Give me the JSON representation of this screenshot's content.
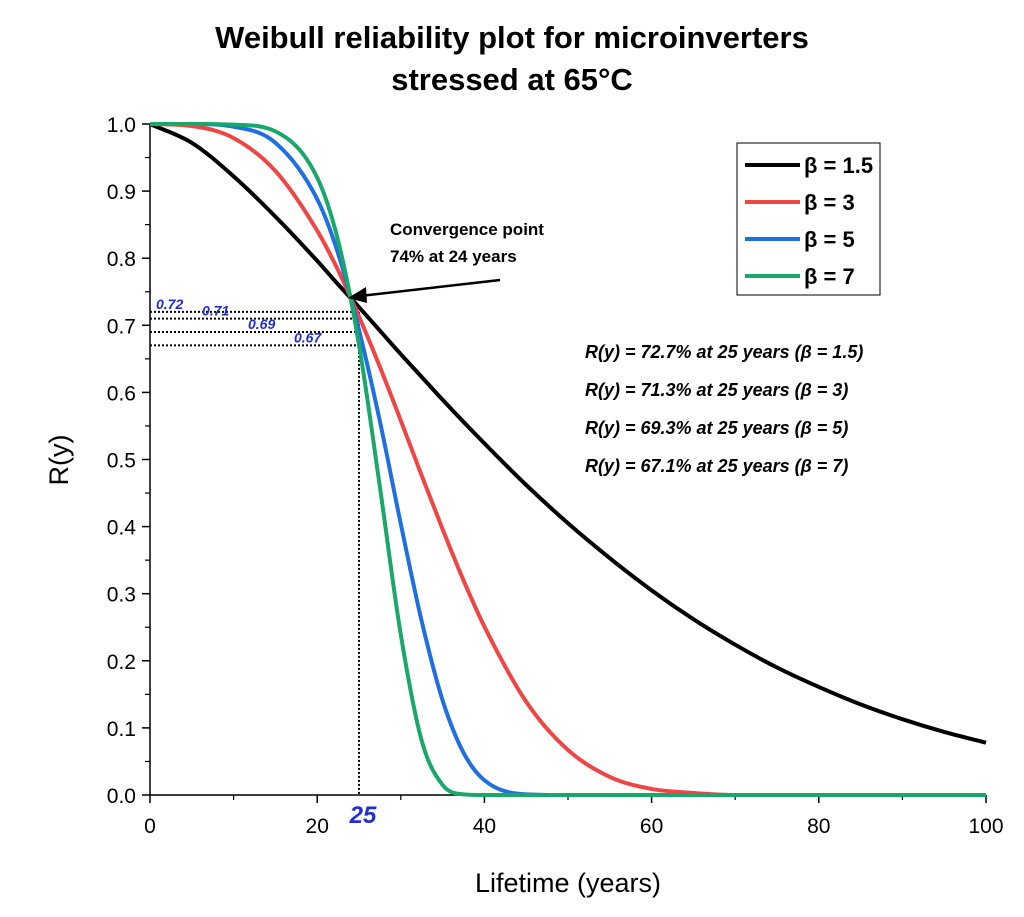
{
  "chart_data": {
    "type": "line",
    "title": [
      "Weibull reliability plot for microinverters",
      "stressed at 65°C"
    ],
    "xlabel": "Lifetime (years)",
    "ylabel": "R(y)",
    "xlim": [
      0,
      100
    ],
    "ylim": [
      0,
      1.0
    ],
    "xticks": [
      "0",
      "20",
      "40",
      "60",
      "80",
      "100"
    ],
    "yticks": [
      "0.0",
      "0.1",
      "0.2",
      "0.3",
      "0.4",
      "0.5",
      "0.6",
      "0.7",
      "0.8",
      "0.9",
      "1.0"
    ],
    "grid": false,
    "legend_position": "top-right",
    "x": [
      0,
      5,
      10,
      15,
      20,
      22.5,
      25,
      27.5,
      30,
      32.5,
      35,
      37.5,
      40,
      45,
      50,
      55,
      60,
      65,
      70,
      75,
      80,
      85,
      90,
      95,
      100
    ],
    "series": [
      {
        "name": "β = 1.5",
        "color": "#000000",
        "values": [
          1.0,
          0.972,
          0.922,
          0.862,
          0.796,
          0.761,
          0.727,
          0.692,
          0.657,
          0.623,
          0.589,
          0.556,
          0.524,
          0.462,
          0.405,
          0.353,
          0.305,
          0.262,
          0.224,
          0.19,
          0.161,
          0.135,
          0.113,
          0.094,
          0.078
        ]
      },
      {
        "name": "β = 3",
        "color": "#f04545",
        "values": [
          1.0,
          0.997,
          0.979,
          0.93,
          0.841,
          0.782,
          0.713,
          0.638,
          0.558,
          0.476,
          0.396,
          0.32,
          0.251,
          0.139,
          0.067,
          0.027,
          0.009,
          0.003,
          0.0,
          0.0,
          0.0,
          0.0,
          0.0,
          0.0,
          0.0
        ]
      },
      {
        "name": "β = 5",
        "color": "#1f6fe0",
        "values": [
          1.0,
          1.0,
          0.996,
          0.972,
          0.888,
          0.807,
          0.693,
          0.557,
          0.404,
          0.259,
          0.141,
          0.063,
          0.022,
          0.001,
          0.0,
          0.0,
          0.0,
          0.0,
          0.0,
          0.0,
          0.0,
          0.0,
          0.0,
          0.0,
          0.0
        ]
      },
      {
        "name": "β = 7",
        "color": "#1aa86a",
        "values": [
          1.0,
          1.0,
          0.999,
          0.989,
          0.92,
          0.826,
          0.671,
          0.459,
          0.239,
          0.081,
          0.015,
          0.001,
          0.0,
          0.0,
          0.0,
          0.0,
          0.0,
          0.0,
          0.0,
          0.0,
          0.0,
          0.0,
          0.0,
          0.0,
          0.0
        ]
      }
    ],
    "annotations": {
      "convergence": [
        "Convergence point",
        "74% at 24 years"
      ],
      "convergence_point": {
        "x": 24,
        "y": 0.74
      },
      "reference_x": 25,
      "reference_x_label": "25",
      "reference_levels": [
        0.72,
        0.71,
        0.69,
        0.67
      ],
      "reference_level_labels": [
        "0.72",
        "0.71",
        "0.69",
        "0.67"
      ],
      "results": [
        "R(y) = 72.7% at 25 years (β = 1.5)",
        "R(y) = 71.3% at 25 years (β = 3)",
        "R(y) = 69.3% at 25 years (β = 5)",
        "R(y) = 67.1% at 25 years (β = 7)"
      ]
    }
  }
}
